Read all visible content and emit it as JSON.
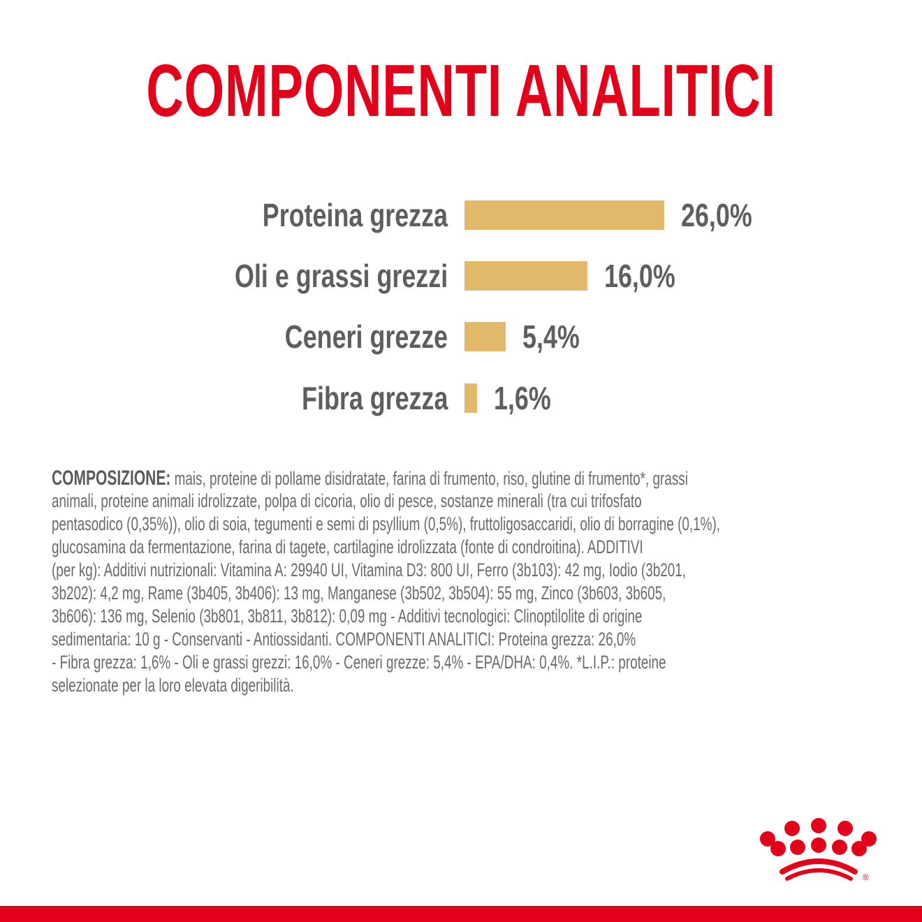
{
  "title": "COMPONENTI ANALITICI",
  "colors": {
    "brand": "#e2001a",
    "bar": "#e2b96a",
    "text": "#5e5e5e"
  },
  "chart_data": {
    "type": "bar",
    "orientation": "horizontal",
    "title": "COMPONENTI ANALITICI",
    "categories": [
      "Proteina grezza",
      "Oli e grassi grezzi",
      "Ceneri grezze",
      "Fibra grezza"
    ],
    "values": [
      26.0,
      16.0,
      5.4,
      1.6
    ],
    "labels": [
      "26,0%",
      "16,0%",
      "5,4%",
      "1,6%"
    ],
    "unit": "%",
    "xlabel": "",
    "ylabel": "",
    "grid": false
  },
  "composition": {
    "heading": "COMPOSIZIONE:",
    "lines": [
      " mais, proteine di pollame disidratate, farina di frumento, riso, glutine di frumento*, grassi",
      "animali, proteine animali idrolizzate, polpa di cicoria, olio di pesce, sostanze minerali (tra cui trifosfato",
      "pentasodico (0,35%)), olio di soia, tegumenti e semi di psyllium (0,5%), fruttoligosaccaridi, olio di borragine (0,1%),",
      "glucosamina da fermentazione, farina di tagete, cartilagine idrolizzata (fonte di condroitina). ADDITIVI",
      "(per  kg): Additivi nutrizionali: Vitamina A: 29940 UI, Vitamina D3: 800 UI, Ferro (3b103): 42 mg, Iodio (3b201,",
      "3b202): 4,2 mg, Rame (3b405, 3b406): 13 mg, Manganese (3b502, 3b504): 55 mg, Zinco (3b603, 3b605,",
      "3b606): 136 mg, Selenio (3b801, 3b811, 3b812): 0,09 mg - Additivi tecnologici: Clinoptilolite di origine",
      "sedimentaria: 10 g - Conservanti - Antiossidanti. COMPONENTI ANALITICI: Proteina grezza: 26,0%",
      "- Fibra grezza: 1,6% - Oli e grassi grezzi: 16,0% - Ceneri grezze: 5,4% - EPA/DHA: 0,4%. *L.I.P.: proteine",
      "selezionate per la loro elevata digeribilità."
    ]
  },
  "logo": {
    "name": "crown-logo",
    "registered": "®"
  }
}
